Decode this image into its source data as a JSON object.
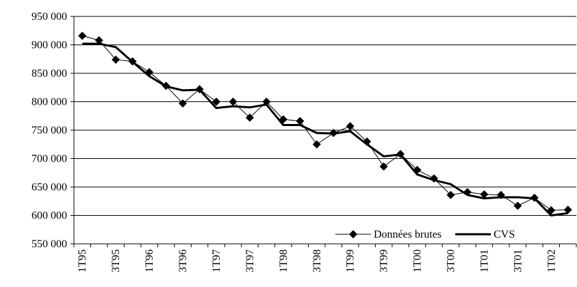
{
  "chart_data": {
    "type": "line",
    "categories": [
      "1T95",
      null,
      "3T95",
      null,
      "1T96",
      null,
      "3T96",
      null,
      "1T97",
      null,
      "3T97",
      null,
      "1T98",
      null,
      "3T98",
      null,
      "1T99",
      null,
      "3T99",
      null,
      "1T00",
      null,
      "3T00",
      null,
      "1T01",
      null,
      "3T01",
      null,
      "1T02",
      null
    ],
    "series": [
      {
        "name": "Données brutes",
        "color": "#000000",
        "marker": "diamond",
        "values": [
          916000,
          908000,
          874000,
          871000,
          852000,
          828000,
          797000,
          822000,
          800000,
          800000,
          772000,
          800000,
          769000,
          766000,
          725000,
          745000,
          757000,
          730000,
          686000,
          708000,
          680000,
          665000,
          636000,
          641000,
          637000,
          636000,
          617000,
          631000,
          609000,
          610000
        ]
      },
      {
        "name": "CVS",
        "color": "#000000",
        "values": [
          902000,
          902000,
          896000,
          870000,
          845000,
          827000,
          820000,
          821000,
          789000,
          792000,
          790000,
          795000,
          759000,
          759000,
          745000,
          744000,
          748000,
          725000,
          704000,
          707000,
          672000,
          662000,
          655000,
          636000,
          630000,
          632000,
          632000,
          630000,
          600000,
          604000
        ]
      }
    ],
    "ylim": [
      550000,
      950000
    ],
    "yticks": [
      {
        "value": 550000,
        "label": "550 000"
      },
      {
        "value": 600000,
        "label": "600 000"
      },
      {
        "value": 650000,
        "label": "650 000"
      },
      {
        "value": 700000,
        "label": "700 000"
      },
      {
        "value": 750000,
        "label": "750 000"
      },
      {
        "value": 800000,
        "label": "800 000"
      },
      {
        "value": 850000,
        "label": "850 000"
      },
      {
        "value": 900000,
        "label": "900 000"
      },
      {
        "value": 950000,
        "label": "950 000"
      }
    ],
    "grid": true,
    "legend": "lower right"
  }
}
